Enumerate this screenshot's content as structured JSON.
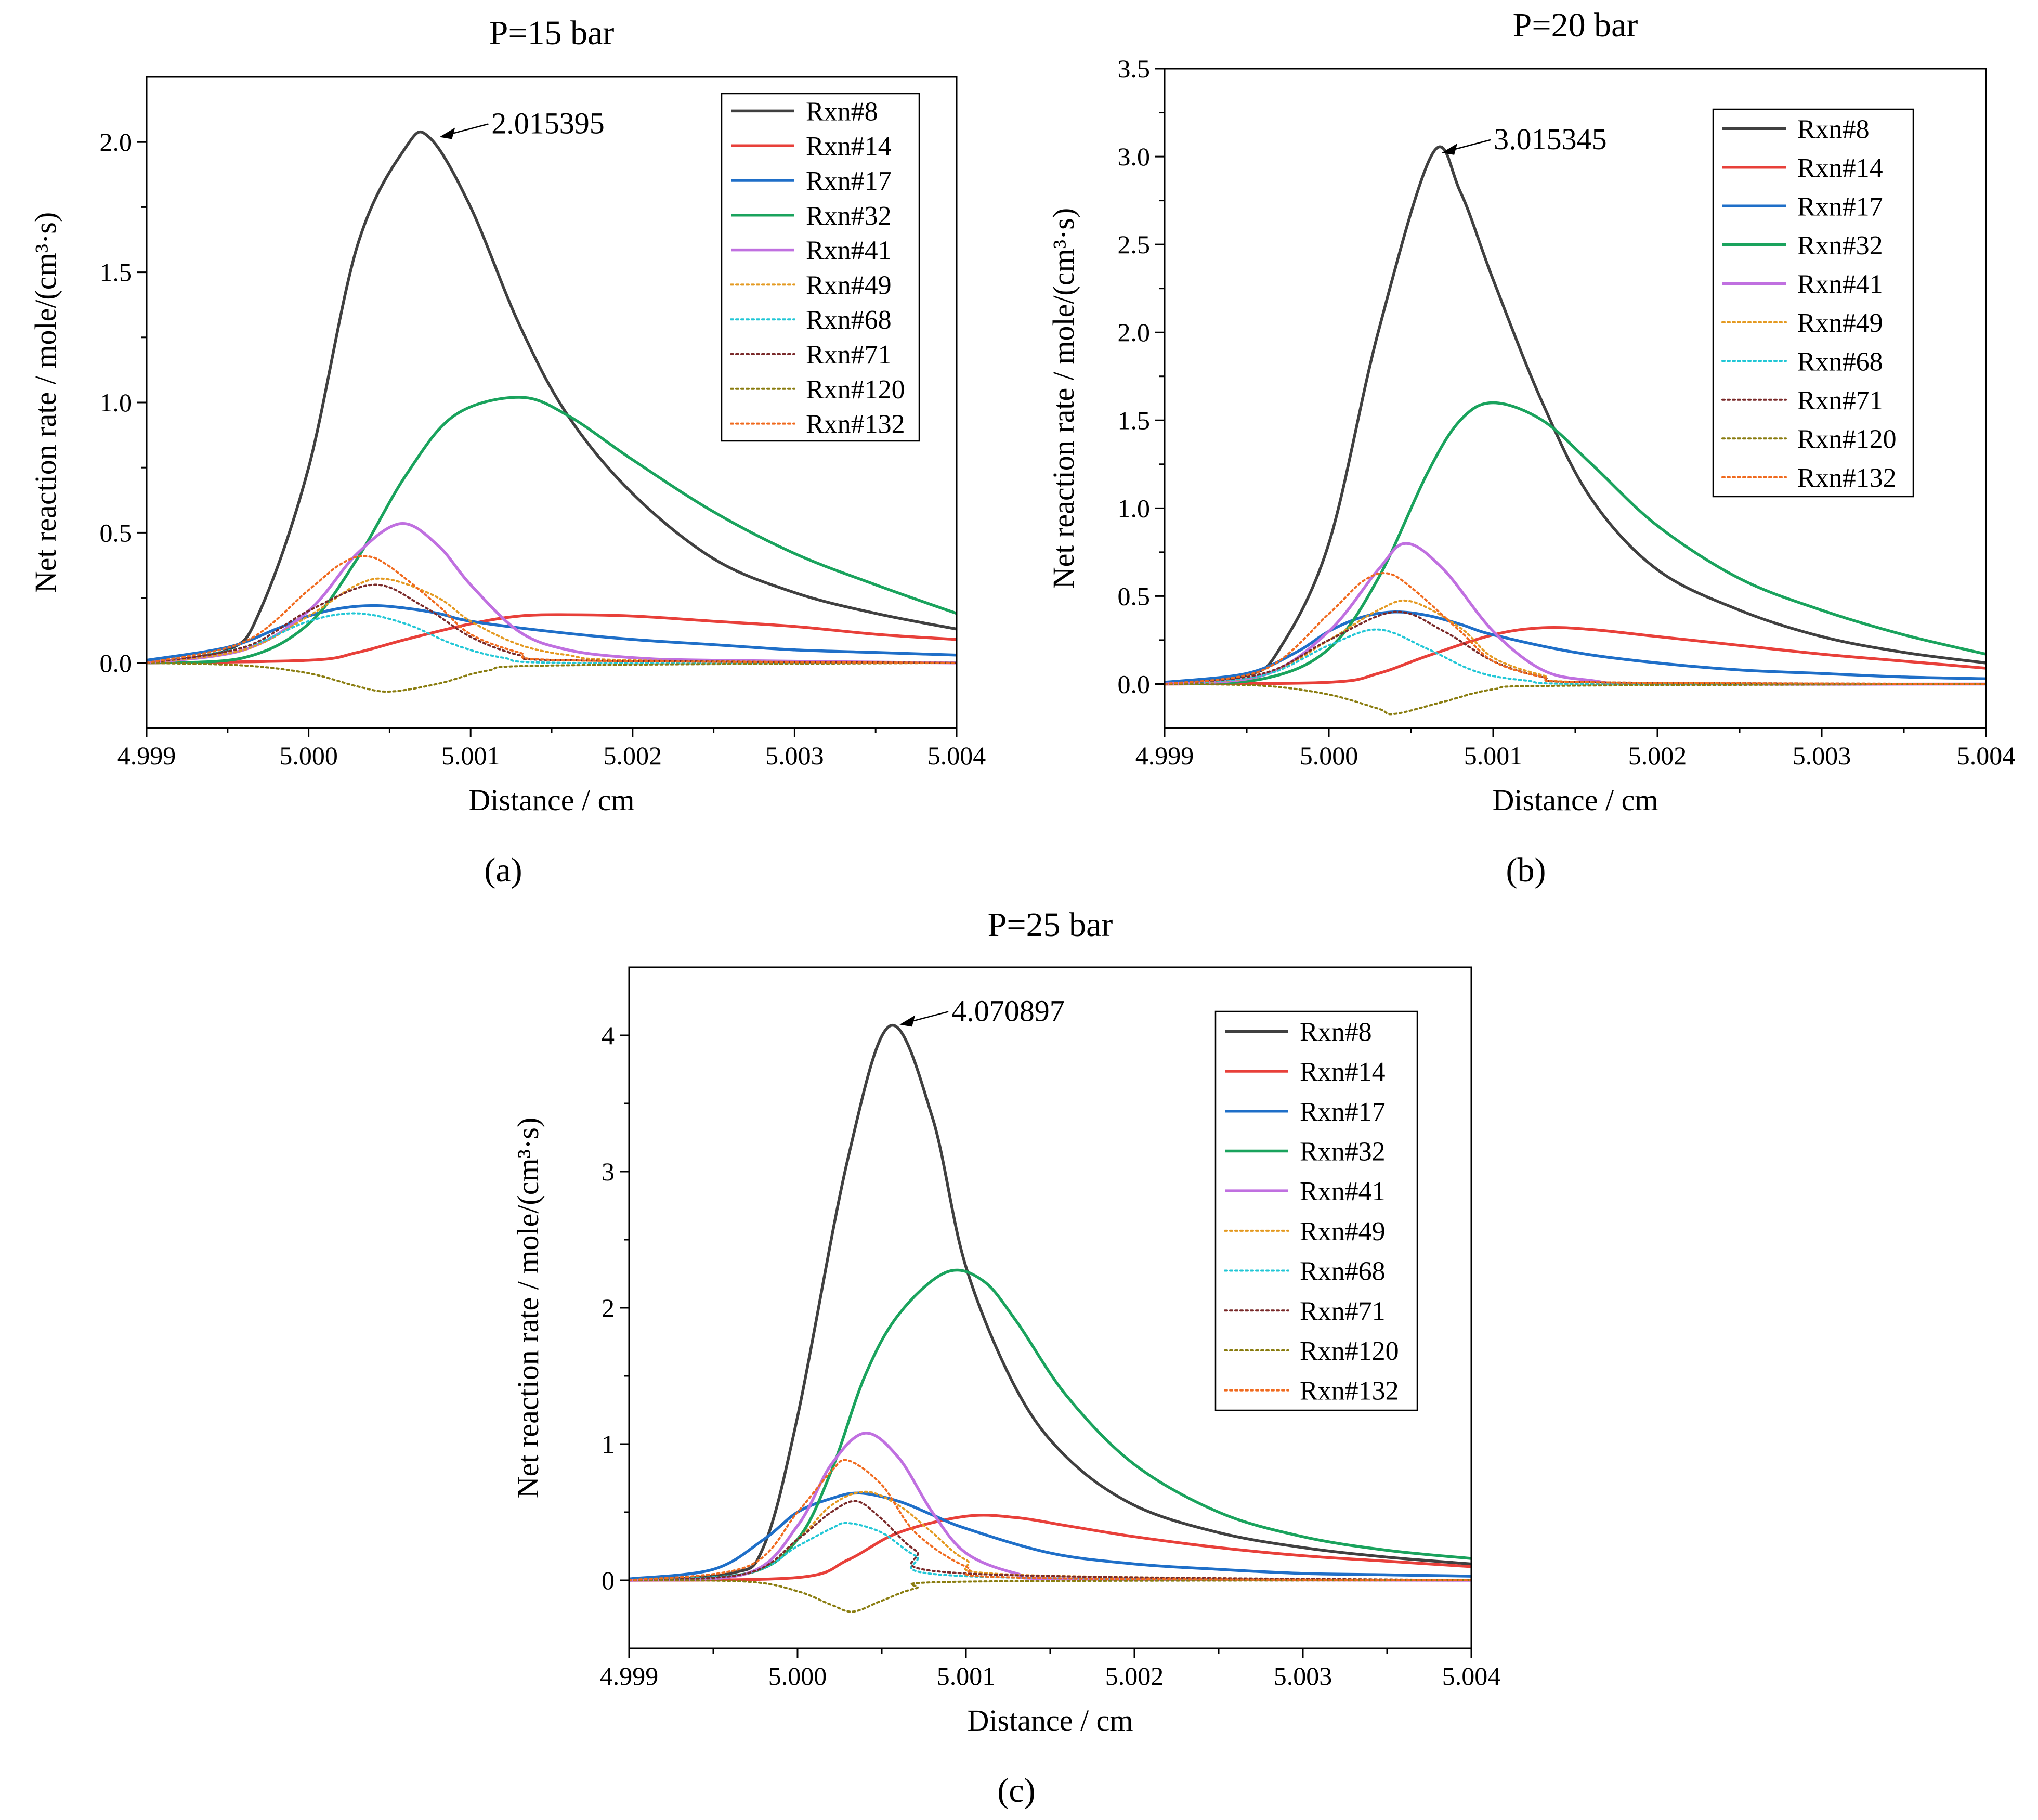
{
  "panel_labels": [
    "(a)",
    "(b)",
    "(c)"
  ],
  "legend_styles": [
    {
      "color": "#404040",
      "dash": "solid"
    },
    {
      "color": "#e8403a",
      "dash": "solid"
    },
    {
      "color": "#1f6fc8",
      "dash": "solid"
    },
    {
      "color": "#1aa35d",
      "dash": "solid"
    },
    {
      "color": "#c070e0",
      "dash": "solid"
    },
    {
      "color": "#e49a22",
      "dash": "dot"
    },
    {
      "color": "#22c7d6",
      "dash": "dot"
    },
    {
      "color": "#7a2a2a",
      "dash": "dot"
    },
    {
      "color": "#8a7d10",
      "dash": "dot"
    },
    {
      "color": "#f06a1e",
      "dash": "dot"
    }
  ],
  "chart_data": [
    {
      "type": "line",
      "title": "P=15 bar",
      "xlabel": "Distance / cm",
      "ylabel": "Net reaction rate / mole/(cm³·s)",
      "xlim": [
        4.999,
        5.004
      ],
      "ylim": [
        -0.25,
        2.25
      ],
      "xticks": [
        "4.999",
        "5.000",
        "5.001",
        "5.002",
        "5.003",
        "5.004"
      ],
      "yticks": [
        "0.0",
        "0.5",
        "1.0",
        "1.5",
        "2.0"
      ],
      "legend_position": "top-right",
      "annotation": {
        "text": "2.015395",
        "x": 5.00075,
        "y": 2.015395
      },
      "series": [
        {
          "name": "Rxn#8",
          "x": [
            4.999,
            4.9995,
            4.9997,
            5.0,
            5.0003,
            5.0006,
            5.00075,
            5.001,
            5.0013,
            5.0016,
            5.002,
            5.0025,
            5.003,
            5.0035,
            5.004
          ],
          "y": [
            0.0,
            0.05,
            0.2,
            0.75,
            1.6,
            1.98,
            2.015,
            1.75,
            1.3,
            0.95,
            0.65,
            0.4,
            0.27,
            0.19,
            0.13
          ]
        },
        {
          "name": "Rxn#14",
          "x": [
            4.999,
            5.0,
            5.0003,
            5.0006,
            5.001,
            5.0013,
            5.0016,
            5.002,
            5.0025,
            5.003,
            5.0035,
            5.004
          ],
          "y": [
            0.0,
            0.01,
            0.04,
            0.09,
            0.15,
            0.18,
            0.185,
            0.18,
            0.16,
            0.14,
            0.11,
            0.09
          ]
        },
        {
          "name": "Rxn#17",
          "x": [
            4.999,
            4.9995,
            4.9998,
            5.0,
            5.0002,
            5.0004,
            5.0006,
            5.0008,
            5.001,
            5.0015,
            5.002,
            5.0025,
            5.003,
            5.0035,
            5.004
          ],
          "y": [
            0.01,
            0.06,
            0.13,
            0.18,
            0.21,
            0.22,
            0.21,
            0.19,
            0.16,
            0.12,
            0.09,
            0.07,
            0.05,
            0.04,
            0.03
          ]
        },
        {
          "name": "Rxn#32",
          "x": [
            4.999,
            4.9996,
            5.0,
            5.0003,
            5.0006,
            5.0009,
            5.0013,
            5.0016,
            5.002,
            5.0025,
            5.003,
            5.0035,
            5.004
          ],
          "y": [
            0.0,
            0.02,
            0.15,
            0.4,
            0.72,
            0.95,
            1.02,
            0.95,
            0.78,
            0.58,
            0.42,
            0.3,
            0.19
          ]
        },
        {
          "name": "Rxn#41",
          "x": [
            4.999,
            4.9996,
            5.0,
            5.0003,
            5.00057,
            5.0008,
            5.001,
            5.0013,
            5.0016,
            5.002,
            5.0025,
            5.004
          ],
          "y": [
            0.0,
            0.05,
            0.2,
            0.42,
            0.535,
            0.45,
            0.3,
            0.12,
            0.05,
            0.02,
            0.01,
            0.0
          ]
        },
        {
          "name": "Rxn#49",
          "x": [
            4.999,
            4.9996,
            5.0,
            5.0003,
            5.0005,
            5.0008,
            5.001,
            5.0013,
            5.0016,
            5.002,
            5.004
          ],
          "y": [
            0.0,
            0.05,
            0.18,
            0.3,
            0.32,
            0.25,
            0.16,
            0.07,
            0.03,
            0.01,
            0.0
          ]
        },
        {
          "name": "Rxn#68",
          "x": [
            4.999,
            4.9996,
            5.0,
            5.0003,
            5.0006,
            5.0009,
            5.0012,
            5.0016,
            5.004
          ],
          "y": [
            0.0,
            0.06,
            0.16,
            0.19,
            0.15,
            0.07,
            0.02,
            0.0,
            0.0
          ]
        },
        {
          "name": "Rxn#71",
          "x": [
            4.999,
            4.9996,
            5.0,
            5.0004,
            5.0007,
            5.001,
            5.0013,
            5.0016,
            5.004
          ],
          "y": [
            0.0,
            0.06,
            0.2,
            0.3,
            0.22,
            0.1,
            0.03,
            0.01,
            0.0
          ]
        },
        {
          "name": "Rxn#120",
          "x": [
            4.999,
            4.9996,
            5.0,
            5.0003,
            5.0005,
            5.0008,
            5.0011,
            5.0015,
            5.004
          ],
          "y": [
            0.0,
            -0.01,
            -0.04,
            -0.09,
            -0.11,
            -0.08,
            -0.03,
            -0.01,
            0.0
          ]
        },
        {
          "name": "Rxn#132",
          "x": [
            4.999,
            4.9996,
            5.0,
            5.0002,
            5.00035,
            5.0005,
            5.0008,
            5.001,
            5.0013,
            5.0016,
            5.004
          ],
          "y": [
            0.0,
            0.08,
            0.28,
            0.38,
            0.41,
            0.37,
            0.22,
            0.11,
            0.04,
            0.01,
            0.0
          ]
        }
      ]
    },
    {
      "type": "line",
      "title": "P=20 bar",
      "xlabel": "Distance / cm",
      "ylabel": "Net reaction rate / mole/(cm³·s)",
      "xlim": [
        4.999,
        5.004
      ],
      "ylim": [
        -0.25,
        3.5
      ],
      "xticks": [
        "4.999",
        "5.000",
        "5.001",
        "5.002",
        "5.003",
        "5.004"
      ],
      "yticks": [
        "0.0",
        "0.5",
        "1.0",
        "1.5",
        "2.0",
        "2.5",
        "3.0",
        "3.5"
      ],
      "legend_position": "top-right",
      "annotation": {
        "text": "3.015345",
        "x": 5.00063,
        "y": 3.015345
      },
      "series": [
        {
          "name": "Rxn#8",
          "x": [
            4.999,
            4.9995,
            4.9997,
            5.0,
            5.0003,
            5.00063,
            5.0008,
            5.001,
            5.0013,
            5.0016,
            5.002,
            5.0025,
            5.003,
            5.0035,
            5.004
          ],
          "y": [
            0.0,
            0.05,
            0.2,
            0.8,
            2.0,
            3.015,
            2.8,
            2.3,
            1.6,
            1.05,
            0.65,
            0.42,
            0.27,
            0.18,
            0.12
          ]
        },
        {
          "name": "Rxn#14",
          "x": [
            4.999,
            5.0,
            5.0003,
            5.0006,
            5.001,
            5.0013,
            5.0016,
            5.002,
            5.0025,
            5.003,
            5.0035,
            5.004
          ],
          "y": [
            0.0,
            0.01,
            0.06,
            0.16,
            0.28,
            0.32,
            0.31,
            0.27,
            0.22,
            0.17,
            0.13,
            0.09
          ]
        },
        {
          "name": "Rxn#17",
          "x": [
            4.999,
            4.9995,
            4.9998,
            5.0,
            5.0002,
            5.0004,
            5.0006,
            5.0008,
            5.001,
            5.0015,
            5.002,
            5.0025,
            5.003,
            5.0035,
            5.004
          ],
          "y": [
            0.01,
            0.06,
            0.18,
            0.3,
            0.38,
            0.41,
            0.39,
            0.34,
            0.28,
            0.18,
            0.12,
            0.08,
            0.06,
            0.04,
            0.03
          ]
        },
        {
          "name": "Rxn#32",
          "x": [
            4.999,
            4.9996,
            5.0,
            5.0003,
            5.0006,
            5.0008,
            5.001,
            5.0013,
            5.0016,
            5.002,
            5.0025,
            5.003,
            5.0035,
            5.004
          ],
          "y": [
            0.0,
            0.03,
            0.2,
            0.6,
            1.2,
            1.5,
            1.6,
            1.5,
            1.25,
            0.9,
            0.6,
            0.42,
            0.28,
            0.17
          ]
        },
        {
          "name": "Rxn#41",
          "x": [
            4.999,
            4.9996,
            5.0,
            5.0003,
            5.00047,
            5.0007,
            5.001,
            5.0013,
            5.0016,
            5.002,
            5.004
          ],
          "y": [
            0.0,
            0.05,
            0.3,
            0.65,
            0.8,
            0.65,
            0.3,
            0.08,
            0.02,
            0.0,
            0.0
          ]
        },
        {
          "name": "Rxn#49",
          "x": [
            4.999,
            4.9996,
            5.0,
            5.0003,
            5.0005,
            5.0008,
            5.001,
            5.0013,
            5.0016,
            5.004
          ],
          "y": [
            0.0,
            0.05,
            0.25,
            0.42,
            0.47,
            0.32,
            0.15,
            0.05,
            0.01,
            0.0
          ]
        },
        {
          "name": "Rxn#68",
          "x": [
            4.999,
            4.9996,
            5.0,
            5.0003,
            5.0006,
            5.0009,
            5.0012,
            5.0016,
            5.004
          ],
          "y": [
            0.0,
            0.05,
            0.22,
            0.31,
            0.2,
            0.07,
            0.02,
            0.0,
            0.0
          ]
        },
        {
          "name": "Rxn#71",
          "x": [
            4.999,
            4.9996,
            5.0,
            5.0004,
            5.0007,
            5.001,
            5.0013,
            5.0016,
            5.004
          ],
          "y": [
            0.0,
            0.06,
            0.25,
            0.41,
            0.3,
            0.13,
            0.04,
            0.01,
            0.0
          ]
        },
        {
          "name": "Rxn#120",
          "x": [
            4.999,
            4.9996,
            5.0,
            5.0003,
            5.0004,
            5.0007,
            5.001,
            5.0014,
            5.004
          ],
          "y": [
            0.0,
            -0.01,
            -0.06,
            -0.14,
            -0.17,
            -0.1,
            -0.03,
            -0.01,
            0.0
          ]
        },
        {
          "name": "Rxn#132",
          "x": [
            4.999,
            4.9996,
            5.0,
            5.0002,
            5.00035,
            5.0005,
            5.0008,
            5.001,
            5.0013,
            5.0016,
            5.004
          ],
          "y": [
            0.0,
            0.08,
            0.4,
            0.58,
            0.63,
            0.55,
            0.3,
            0.13,
            0.04,
            0.01,
            0.0
          ]
        }
      ]
    },
    {
      "type": "line",
      "title": "P=25 bar",
      "xlabel": "Distance / cm",
      "ylabel": "Net reaction rate / mole/(cm³·s)",
      "xlim": [
        4.999,
        5.004
      ],
      "ylim": [
        -0.5,
        4.5
      ],
      "xticks": [
        "4.999",
        "5.000",
        "5.001",
        "5.002",
        "5.003",
        "5.004"
      ],
      "yticks": [
        "0",
        "1",
        "2",
        "3",
        "4"
      ],
      "legend_position": "top-right",
      "annotation": {
        "text": "4.070897",
        "x": 5.00055,
        "y": 4.070897
      },
      "series": [
        {
          "name": "Rxn#8",
          "x": [
            4.999,
            4.9996,
            4.9998,
            5.0,
            5.0003,
            5.00055,
            5.0008,
            5.001,
            5.0013,
            5.0016,
            5.002,
            5.0025,
            5.003,
            5.0035,
            5.004
          ],
          "y": [
            0.0,
            0.05,
            0.25,
            1.2,
            3.1,
            4.07,
            3.4,
            2.3,
            1.4,
            0.9,
            0.55,
            0.35,
            0.24,
            0.17,
            0.12
          ]
        },
        {
          "name": "Rxn#14",
          "x": [
            4.999,
            5.0,
            5.0003,
            5.0006,
            5.001,
            5.0013,
            5.0016,
            5.002,
            5.0025,
            5.003,
            5.0035,
            5.004
          ],
          "y": [
            0.0,
            0.02,
            0.15,
            0.35,
            0.47,
            0.46,
            0.4,
            0.32,
            0.24,
            0.18,
            0.14,
            0.1
          ]
        },
        {
          "name": "Rxn#17",
          "x": [
            4.999,
            4.9995,
            4.9998,
            5.0,
            5.0002,
            5.00037,
            5.0006,
            5.0008,
            5.001,
            5.0015,
            5.002,
            5.0025,
            5.003,
            5.0035,
            5.004
          ],
          "y": [
            0.01,
            0.08,
            0.3,
            0.5,
            0.6,
            0.64,
            0.58,
            0.48,
            0.38,
            0.2,
            0.12,
            0.08,
            0.05,
            0.04,
            0.03
          ]
        },
        {
          "name": "Rxn#32",
          "x": [
            4.999,
            4.9997,
            5.0,
            5.0002,
            5.0004,
            5.0006,
            5.00088,
            5.0011,
            5.0013,
            5.0016,
            5.002,
            5.0025,
            5.003,
            5.0035,
            5.004
          ],
          "y": [
            0.0,
            0.05,
            0.3,
            0.8,
            1.5,
            1.95,
            2.26,
            2.2,
            1.9,
            1.35,
            0.85,
            0.5,
            0.32,
            0.22,
            0.16
          ]
        },
        {
          "name": "Rxn#41",
          "x": [
            4.999,
            4.9997,
            5.0,
            5.0002,
            5.0004,
            5.0006,
            5.0008,
            5.001,
            5.0013,
            5.0016,
            5.004
          ],
          "y": [
            0.0,
            0.05,
            0.4,
            0.85,
            1.08,
            0.9,
            0.5,
            0.2,
            0.05,
            0.01,
            0.0
          ]
        },
        {
          "name": "Rxn#49",
          "x": [
            4.999,
            4.9997,
            5.0,
            5.0002,
            5.0004,
            5.0006,
            5.0008,
            5.001,
            5.0013,
            5.004
          ],
          "y": [
            0.0,
            0.05,
            0.3,
            0.55,
            0.65,
            0.55,
            0.35,
            0.15,
            0.04,
            0.0
          ]
        },
        {
          "name": "Rxn#68",
          "x": [
            4.999,
            4.9997,
            5.0,
            5.0002,
            5.0003,
            5.0005,
            5.0007,
            5.001,
            5.004
          ],
          "y": [
            0.0,
            0.05,
            0.25,
            0.38,
            0.42,
            0.35,
            0.18,
            0.03,
            0.0
          ]
        },
        {
          "name": "Rxn#71",
          "x": [
            4.999,
            4.9997,
            5.0,
            5.0002,
            5.00035,
            5.0005,
            5.0007,
            5.001,
            5.004
          ],
          "y": [
            0.0,
            0.05,
            0.3,
            0.5,
            0.58,
            0.45,
            0.22,
            0.05,
            0.0
          ]
        },
        {
          "name": "Rxn#120",
          "x": [
            4.999,
            4.9997,
            5.0,
            5.0002,
            5.00033,
            5.0005,
            5.0007,
            5.001,
            5.004
          ],
          "y": [
            0.0,
            -0.01,
            -0.08,
            -0.18,
            -0.23,
            -0.15,
            -0.06,
            -0.01,
            0.0
          ]
        },
        {
          "name": "Rxn#132",
          "x": [
            4.999,
            4.9997,
            5.0,
            5.0002,
            5.0003,
            5.0005,
            5.0007,
            5.001,
            5.0013,
            5.004
          ],
          "y": [
            0.0,
            0.1,
            0.5,
            0.8,
            0.88,
            0.7,
            0.35,
            0.1,
            0.02,
            0.0
          ]
        }
      ]
    }
  ]
}
